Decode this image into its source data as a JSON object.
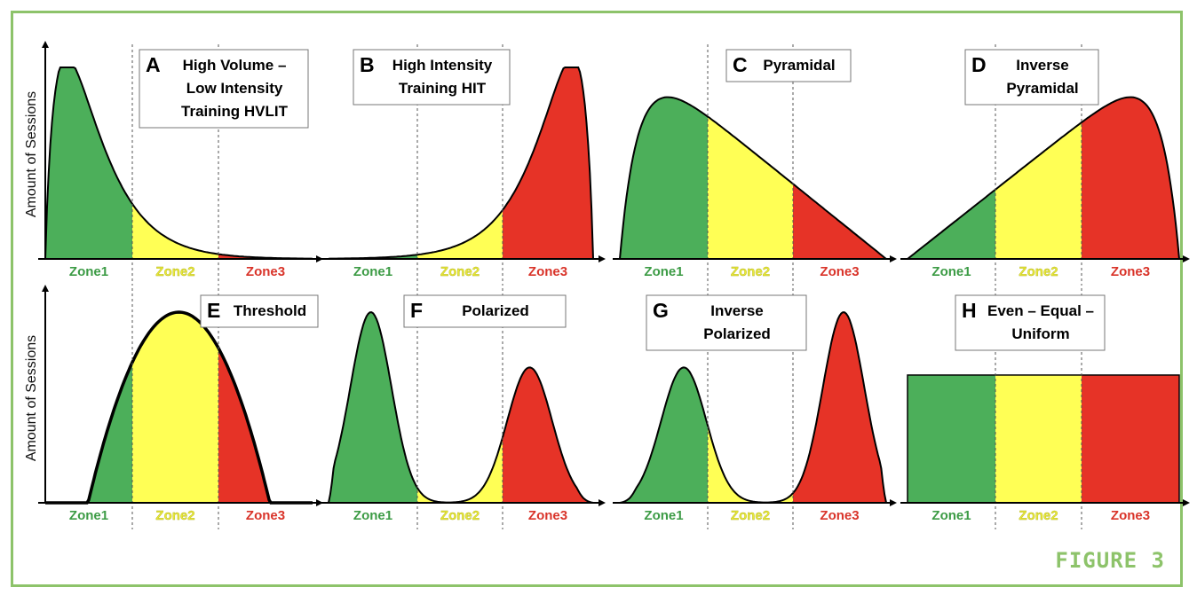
{
  "figure_label": "FIGURE 3",
  "y_axis_label": "Amount of Sessions",
  "zone_labels": [
    "Zone1",
    "Zone2",
    "Zone3"
  ],
  "colors": {
    "zone1": "#4caf5a",
    "zone2": "#ffff55",
    "zone3": "#e63327",
    "zone1_text": "#3c9b45",
    "zone2_text": "#e8e83a",
    "zone3_text": "#d9342a",
    "border": "#8dc36a"
  },
  "panels": [
    {
      "letter": "A",
      "title_lines": [
        "High Volume –",
        "Low Intensity",
        "Training HVLIT"
      ],
      "shape": "hvlit"
    },
    {
      "letter": "B",
      "title_lines": [
        "High Intensity",
        "Training HIT"
      ],
      "shape": "hit"
    },
    {
      "letter": "C",
      "title_lines": [
        "Pyramidal"
      ],
      "shape": "pyramidal"
    },
    {
      "letter": "D",
      "title_lines": [
        "Inverse",
        "Pyramidal"
      ],
      "shape": "inverse-pyramidal"
    },
    {
      "letter": "E",
      "title_lines": [
        "Threshold"
      ],
      "shape": "threshold"
    },
    {
      "letter": "F",
      "title_lines": [
        "Polarized"
      ],
      "shape": "polarized"
    },
    {
      "letter": "G",
      "title_lines": [
        "Inverse",
        "Polarized"
      ],
      "shape": "inverse-polarized"
    },
    {
      "letter": "H",
      "title_lines": [
        "Even – Equal –",
        "Uniform"
      ],
      "shape": "even"
    }
  ]
}
